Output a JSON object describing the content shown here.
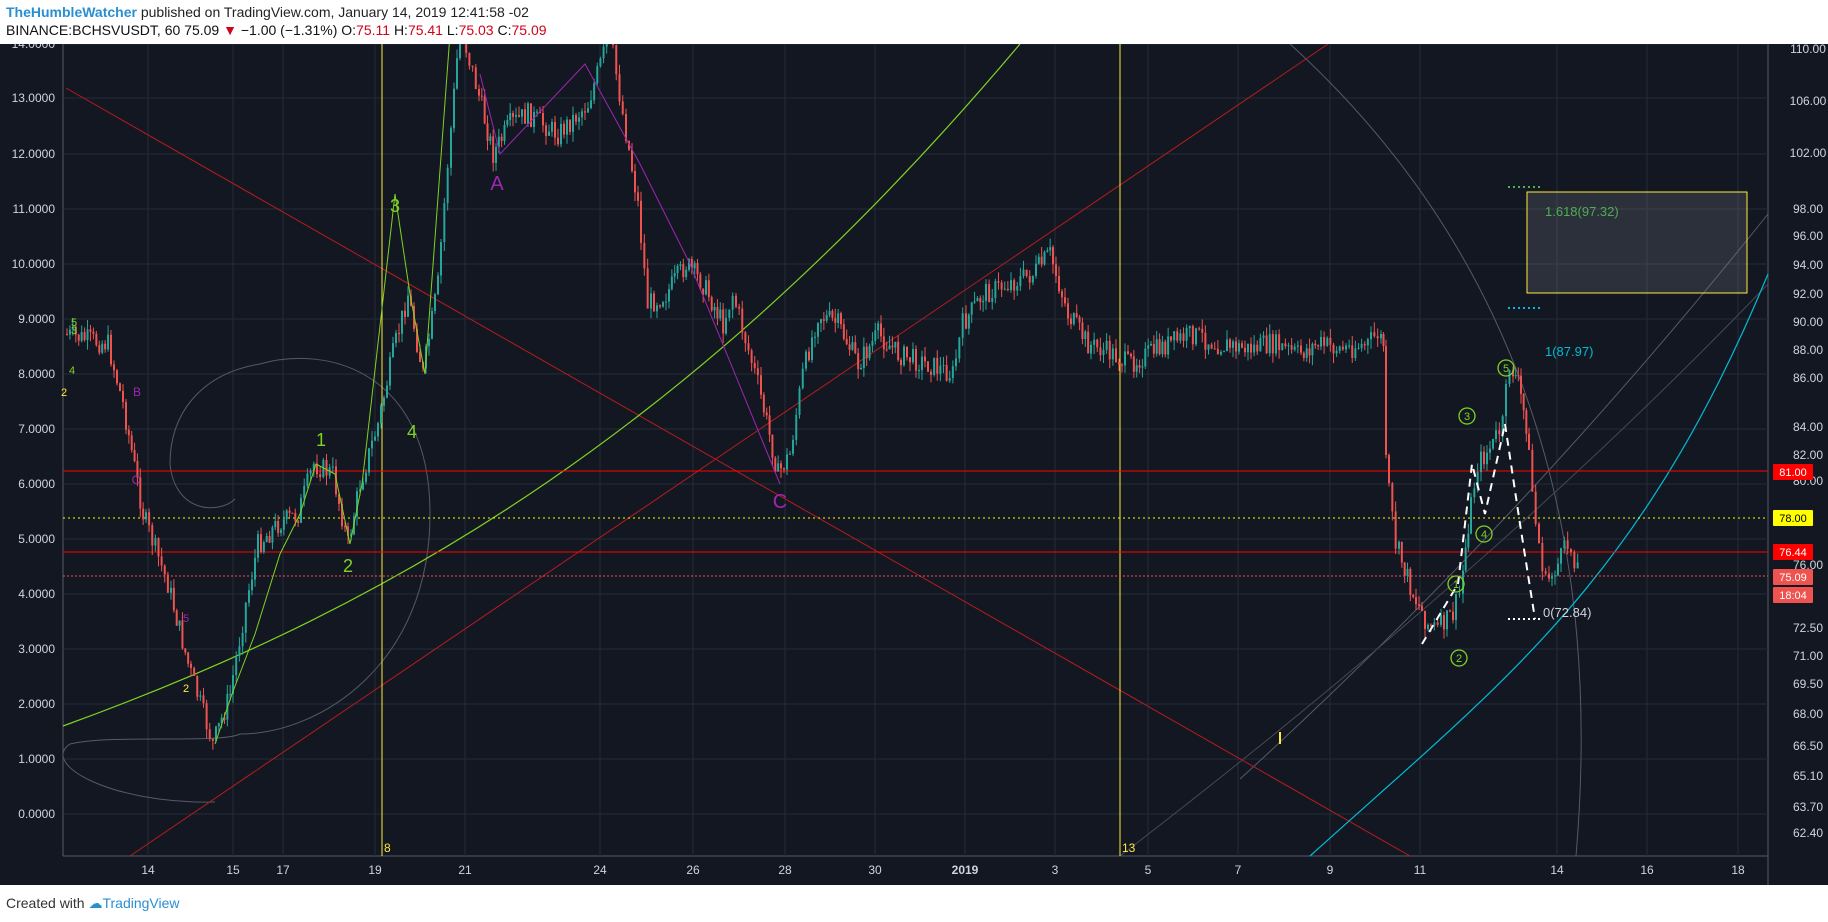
{
  "header": {
    "author": "TheHumbleWatcher",
    "published": " published on TradingView.com, January 14, 2019 12:41:58 -02",
    "symbol": "BINANCE:BCHSVUSDT, 60",
    "last": "75.09",
    "change_arrow": "▼",
    "change": "−1.00 (−1.31%)",
    "o_label": "O:",
    "o_value": "75.11",
    "h_label": "H:",
    "h_value": "75.41",
    "l_label": "L:",
    "l_value": "75.03",
    "c_label": "C:",
    "c_value": "75.09"
  },
  "footer": {
    "created_with": "Created with",
    "brand": "TradingView"
  },
  "chart_data": {
    "type": "candlestick",
    "left_axis_ticks": [
      "14.0000",
      "13.0000",
      "12.0000",
      "11.0000",
      "10.0000",
      "9.0000",
      "8.0000",
      "7.0000",
      "6.0000",
      "5.0000",
      "4.0000",
      "3.0000",
      "2.0000",
      "1.0000",
      "0.0000"
    ],
    "right_axis_ticks": [
      "110.00",
      "106.00",
      "102.00",
      "98.00",
      "96.00",
      "94.00",
      "92.00",
      "90.00",
      "88.00",
      "86.00",
      "84.00",
      "82.00",
      "80.00",
      "76.00",
      "72.50",
      "71.00",
      "69.50",
      "68.00",
      "66.50",
      "65.10",
      "63.70",
      "62.40"
    ],
    "x_ticks": [
      "14",
      "15",
      "17",
      "19",
      "21",
      "24",
      "26",
      "28",
      "30",
      "2019",
      "3",
      "5",
      "7",
      "9",
      "11",
      "14",
      "16",
      "18"
    ],
    "price_tags": [
      {
        "text": "81.00",
        "bg": "#ff0000",
        "color": "#ffffff"
      },
      {
        "text": "78.00",
        "bg": "#ffff00",
        "color": "#000000"
      },
      {
        "text": "76.44",
        "bg": "#ff0000",
        "color": "#ffffff"
      },
      {
        "text": "75.09",
        "bg": "#ef5350",
        "color": "#ffffff"
      },
      {
        "text": "18:04",
        "bg": "#ef5350",
        "color": "#ffffff"
      }
    ],
    "vline_labels": [
      "8",
      "13"
    ],
    "fib_labels": [
      "1.618(97.32)",
      "1(87.97)",
      "0(72.84)"
    ],
    "wave_labels_left": [
      "3",
      "4",
      "5",
      "2",
      "B",
      "C",
      "5",
      "2",
      "1",
      "2",
      "3",
      "4",
      "A",
      "C"
    ],
    "wave_labels_right": [
      "1",
      "2",
      "3",
      "4",
      "5"
    ],
    "colors": {
      "background": "#131722",
      "grid": "#262b3a",
      "candle_up": "#26a69a",
      "candle_down": "#ef5350",
      "support_line": "#ff0000",
      "dotted_line": "#ffff00",
      "arc_green": "#7ed321",
      "cyan_arc": "#00bcd4"
    }
  }
}
